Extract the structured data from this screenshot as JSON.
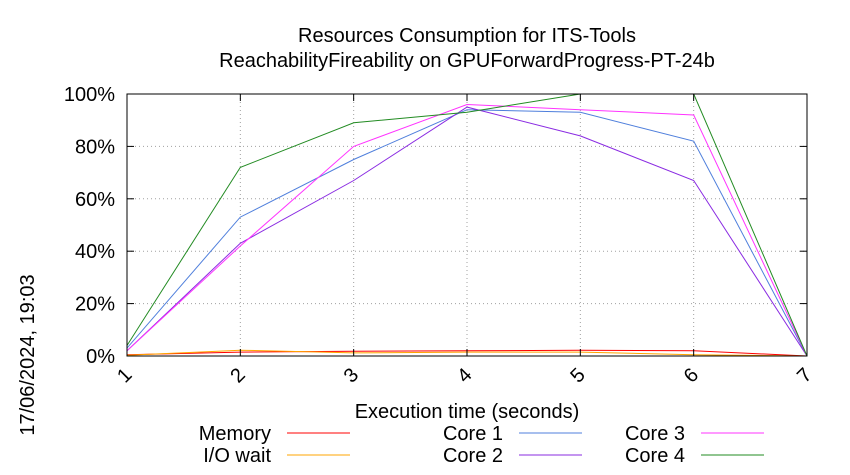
{
  "chart_data": {
    "type": "line",
    "title": "Resources Consumption for ITS-Tools",
    "subtitle": "ReachabilityFireability on GPUForwardProgress-PT-24b",
    "xlabel": "Execution time (seconds)",
    "ylabel": "",
    "side_label": "17/06/2024, 19:03",
    "x": [
      1,
      2,
      3,
      4,
      5,
      6,
      7
    ],
    "x_ticks": [
      "1",
      "2",
      "3",
      "4",
      "5",
      "6",
      "7"
    ],
    "y_ticks": [
      "0%",
      "20%",
      "40%",
      "60%",
      "80%",
      "100%"
    ],
    "xlim": [
      1,
      7
    ],
    "ylim": [
      0,
      100
    ],
    "grid": true,
    "legend_position": "bottom",
    "series": [
      {
        "name": "Memory",
        "color": "#ff0000",
        "values": [
          0.5,
          1.5,
          1.8,
          2,
          2.2,
          2,
          0
        ]
      },
      {
        "name": "I/O wait",
        "color": "#ffa500",
        "values": [
          0.3,
          2.2,
          1.2,
          1.5,
          1.5,
          0.5,
          0
        ]
      },
      {
        "name": "Core 1",
        "color": "#4f7fdc",
        "values": [
          3,
          53,
          75,
          94,
          93,
          82,
          0
        ]
      },
      {
        "name": "Core 2",
        "color": "#8a2be2",
        "values": [
          2,
          43,
          67,
          95,
          84,
          67,
          0
        ]
      },
      {
        "name": "Core 3",
        "color": "#ff33ff",
        "values": [
          2,
          42,
          80,
          96,
          94,
          92,
          0
        ]
      },
      {
        "name": "Core 4",
        "color": "#228b22",
        "values": [
          4,
          72,
          89,
          93,
          100,
          100,
          0
        ]
      }
    ]
  }
}
